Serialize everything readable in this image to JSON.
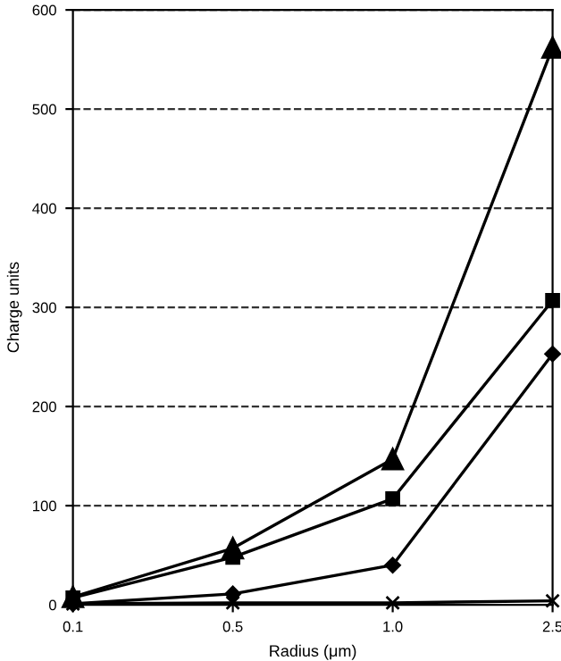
{
  "chart_data": {
    "type": "line",
    "xlabel": "Radius (μm)",
    "ylabel": "Charge units",
    "categories": [
      "0.1",
      "0.5",
      "1.0",
      "2.5"
    ],
    "series": [
      {
        "color": "#000000",
        "marker": "triangle",
        "values": [
          8,
          57,
          147,
          562
        ]
      },
      {
        "color": "#000000",
        "marker": "square",
        "values": [
          7,
          48,
          107,
          307
        ]
      },
      {
        "color": "#000000",
        "marker": "diamond",
        "values": [
          1,
          11,
          40,
          253
        ]
      },
      {
        "color": "#000000",
        "marker": "cross",
        "values": [
          1,
          2,
          2,
          4
        ]
      }
    ],
    "ylim": [
      0,
      600
    ],
    "yticks": [
      0,
      100,
      200,
      300,
      400,
      500,
      600
    ],
    "grid": "y",
    "line_style": "solid"
  }
}
